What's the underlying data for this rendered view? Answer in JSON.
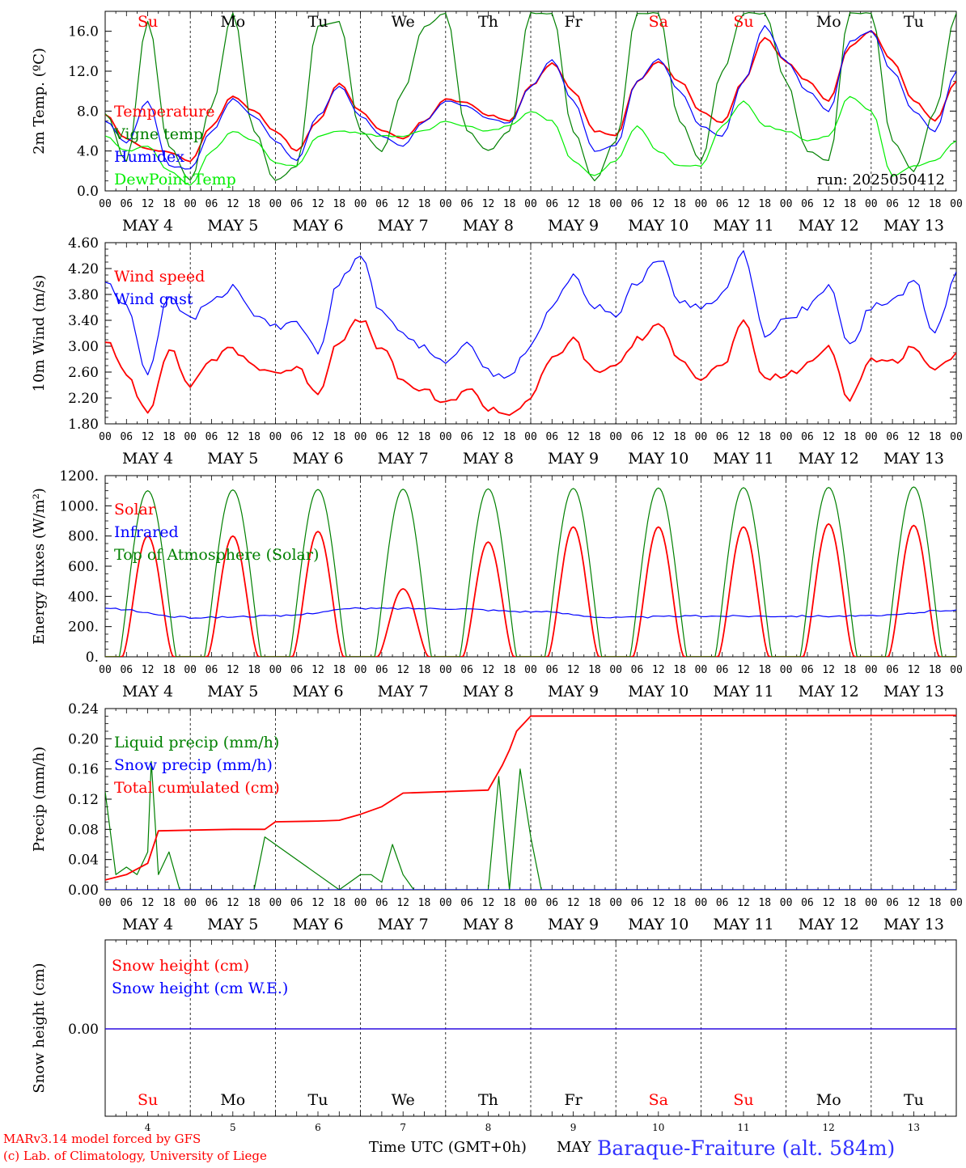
{
  "domain": "Chart",
  "days": [
    {
      "abbr": "Su",
      "color": "#ff0000"
    },
    {
      "abbr": "Mo",
      "color": "#000000"
    },
    {
      "abbr": "Tu",
      "color": "#000000"
    },
    {
      "abbr": "We",
      "color": "#000000"
    },
    {
      "abbr": "Th",
      "color": "#000000"
    },
    {
      "abbr": "Fr",
      "color": "#000000"
    },
    {
      "abbr": "Sa",
      "color": "#ff0000"
    },
    {
      "abbr": "Su",
      "color": "#ff0000"
    },
    {
      "abbr": "Mo",
      "color": "#000000"
    },
    {
      "abbr": "Tu",
      "color": "#000000"
    }
  ],
  "date_labels": [
    "MAY  4",
    "MAY  5",
    "MAY  6",
    "MAY  7",
    "MAY  8",
    "MAY  9",
    "MAY 10",
    "MAY 11",
    "MAY 12",
    "MAY 13"
  ],
  "hour_labels": [
    "00",
    "06",
    "12",
    "18"
  ],
  "bottom_day_numbers": [
    "4",
    "5",
    "6",
    "7",
    "8",
    "9",
    "10",
    "11",
    "12",
    "13"
  ],
  "footer": {
    "model": "MARv3.14 model forced by GFS",
    "credit": "(c) Lab. of Climatology, University of Liege",
    "axis_title": "Time UTC (GMT+0h)",
    "month": "MAY",
    "station": "Baraque-Fraiture (alt. 584m)"
  },
  "colors": {
    "red": "#ff0000",
    "blue": "#0000ff",
    "green": "#008000",
    "lightgreen": "#00ee00"
  },
  "chart_data": [
    {
      "id": "temp",
      "type": "line",
      "ylabel": "2m Temp. (ºC)",
      "ylim": [
        0,
        18
      ],
      "yticks": [
        0,
        4,
        8,
        12,
        16
      ],
      "ytick_labels": [
        "0.0",
        "4.0",
        "8.0",
        "12.0",
        "16.0"
      ],
      "annotation": "run: 2025050412",
      "x_unit": "hours since May 4 00 UTC",
      "series": [
        {
          "name": "Temperature",
          "color": "#ff0000",
          "x": [
            0,
            6,
            12,
            18,
            24,
            30,
            36,
            42,
            48,
            54,
            60,
            66,
            72,
            78,
            84,
            90,
            96,
            102,
            108,
            114,
            120,
            126,
            132,
            138,
            144,
            150,
            156,
            162,
            168,
            174,
            180,
            186,
            192,
            198,
            204,
            210,
            216,
            222,
            228,
            234,
            240
          ],
          "y": [
            7.6,
            5.2,
            4.2,
            3.9,
            3.0,
            6.5,
            9.5,
            8.0,
            6.0,
            4.0,
            7.0,
            10.8,
            8.0,
            6.0,
            5.2,
            7.0,
            9.2,
            8.8,
            7.6,
            7.0,
            10.5,
            12.8,
            10.0,
            6.0,
            5.5,
            11.0,
            13.0,
            11.0,
            8.0,
            6.8,
            11.0,
            15.4,
            13.0,
            11.0,
            9.0,
            14.5,
            16.0,
            13.0,
            9.0,
            7.0,
            11.0
          ]
        },
        {
          "name": "Vigne temp",
          "color": "#008000",
          "x": [
            0,
            6,
            12,
            18,
            24,
            30,
            36,
            42,
            48,
            54,
            60,
            66,
            72,
            78,
            84,
            90,
            96,
            102,
            108,
            114,
            120,
            126,
            132,
            138,
            144,
            150,
            156,
            162,
            168,
            174,
            180,
            186,
            192,
            198,
            204,
            210,
            216,
            222,
            228,
            234,
            240
          ],
          "y": [
            7.8,
            3.0,
            17.0,
            4.5,
            1.0,
            8.5,
            17.8,
            6.0,
            1.0,
            2.5,
            16.5,
            17.0,
            6.0,
            4.0,
            10.0,
            16.5,
            17.8,
            6.0,
            4.0,
            6.0,
            17.8,
            17.8,
            6.0,
            1.0,
            5.0,
            17.8,
            17.8,
            7.0,
            3.0,
            12.0,
            17.8,
            17.8,
            11.0,
            4.0,
            3.0,
            17.8,
            17.8,
            5.0,
            2.0,
            8.0,
            17.8
          ]
        },
        {
          "name": "Humidex",
          "color": "#0000ff",
          "x": [
            0,
            6,
            12,
            18,
            24,
            30,
            36,
            42,
            48,
            54,
            60,
            66,
            72,
            78,
            84,
            90,
            96,
            102,
            108,
            114,
            120,
            126,
            132,
            138,
            144,
            150,
            156,
            162,
            168,
            174,
            180,
            186,
            192,
            198,
            204,
            210,
            216,
            222,
            228,
            234,
            240
          ],
          "y": [
            7.0,
            4.8,
            9.0,
            2.5,
            2.2,
            6.0,
            9.2,
            7.5,
            5.0,
            3.0,
            7.5,
            10.5,
            7.5,
            5.5,
            4.5,
            7.0,
            9.0,
            8.5,
            7.2,
            6.8,
            10.5,
            13.2,
            9.0,
            4.0,
            4.5,
            11.0,
            13.2,
            10.0,
            6.5,
            5.5,
            11.0,
            16.5,
            13.0,
            10.0,
            8.0,
            15.0,
            16.0,
            12.0,
            8.0,
            6.0,
            12.0
          ]
        },
        {
          "name": "DewPoint Temp",
          "color": "#00ee00",
          "x": [
            0,
            6,
            12,
            18,
            24,
            30,
            36,
            42,
            48,
            54,
            60,
            66,
            72,
            78,
            84,
            90,
            96,
            102,
            108,
            114,
            120,
            126,
            132,
            138,
            144,
            150,
            156,
            162,
            168,
            174,
            180,
            186,
            192,
            198,
            204,
            210,
            216,
            222,
            228,
            234,
            240
          ],
          "y": [
            5.5,
            4.0,
            4.5,
            2.0,
            0.6,
            4.0,
            6.0,
            5.0,
            2.8,
            2.5,
            5.5,
            6.0,
            5.8,
            5.5,
            5.5,
            6.0,
            7.0,
            6.5,
            6.0,
            6.5,
            8.0,
            7.0,
            3.0,
            1.5,
            3.0,
            6.5,
            4.0,
            2.5,
            2.5,
            6.5,
            9.0,
            6.5,
            6.0,
            5.0,
            5.5,
            9.5,
            8.0,
            1.5,
            2.5,
            3.0,
            5.0
          ]
        }
      ]
    },
    {
      "id": "wind",
      "type": "line",
      "ylabel": "10m Wind (m/s)",
      "ylim": [
        1.8,
        4.6
      ],
      "yticks": [
        1.8,
        2.2,
        2.6,
        3.0,
        3.4,
        3.8,
        4.2,
        4.6
      ],
      "ytick_labels": [
        "1.80",
        "2.20",
        "2.60",
        "3.00",
        "3.40",
        "3.80",
        "4.20",
        "4.60"
      ],
      "x_unit": "hours since May 4 00 UTC",
      "series": [
        {
          "name": "Wind speed",
          "color": "#ff0000",
          "x": [
            0,
            6,
            12,
            18,
            24,
            30,
            36,
            42,
            48,
            54,
            60,
            66,
            72,
            78,
            84,
            90,
            96,
            102,
            108,
            114,
            120,
            126,
            132,
            138,
            144,
            150,
            156,
            162,
            168,
            174,
            180,
            186,
            192,
            198,
            204,
            210,
            216,
            222,
            228,
            234,
            240
          ],
          "y": [
            3.1,
            2.55,
            2.0,
            2.95,
            2.4,
            2.8,
            2.95,
            2.7,
            2.6,
            2.65,
            2.3,
            3.1,
            3.4,
            2.95,
            2.45,
            2.3,
            2.1,
            2.35,
            2.05,
            1.95,
            2.2,
            2.8,
            3.1,
            2.6,
            2.7,
            3.1,
            3.3,
            2.85,
            2.5,
            2.7,
            3.35,
            2.5,
            2.55,
            2.7,
            3.0,
            2.2,
            2.8,
            2.75,
            3.0,
            2.6,
            2.9
          ]
        },
        {
          "name": "Wind gust",
          "color": "#0000ff",
          "x": [
            0,
            6,
            12,
            18,
            24,
            30,
            36,
            42,
            48,
            54,
            60,
            66,
            72,
            78,
            84,
            90,
            96,
            102,
            108,
            114,
            120,
            126,
            132,
            138,
            144,
            150,
            156,
            162,
            168,
            174,
            180,
            186,
            192,
            198,
            204,
            210,
            216,
            222,
            228,
            234,
            240
          ],
          "y": [
            4.0,
            3.6,
            2.6,
            3.8,
            3.4,
            3.7,
            3.9,
            3.5,
            3.3,
            3.4,
            2.9,
            4.0,
            4.45,
            3.5,
            3.2,
            3.0,
            2.7,
            3.1,
            2.6,
            2.55,
            3.0,
            3.6,
            4.1,
            3.6,
            3.5,
            4.0,
            4.35,
            3.7,
            3.6,
            3.8,
            4.45,
            3.2,
            3.4,
            3.6,
            3.9,
            3.0,
            3.6,
            3.7,
            4.0,
            3.2,
            4.15
          ]
        }
      ]
    },
    {
      "id": "energy",
      "type": "line",
      "ylabel": "Energy fluxes (W/m²)",
      "ylim": [
        0,
        1200
      ],
      "yticks": [
        0,
        200,
        400,
        600,
        800,
        1000,
        1200
      ],
      "ytick_labels": [
        "0.",
        "200.",
        "400.",
        "600.",
        "800.",
        "1000.",
        "1200."
      ],
      "x_unit": "hours since May 4 00 UTC",
      "series": [
        {
          "name": "Solar",
          "color": "#ff0000",
          "daily_peak": [
            800,
            800,
            830,
            450,
            760,
            860,
            860,
            860,
            880,
            870
          ]
        },
        {
          "name": "Infrared",
          "color": "#0000ff",
          "x": [
            0,
            24,
            48,
            72,
            96,
            120,
            144,
            168,
            192,
            216,
            240
          ],
          "y": [
            320,
            260,
            270,
            320,
            320,
            300,
            260,
            270,
            270,
            270,
            310
          ]
        },
        {
          "name": "Top of Atmosphere (Solar)",
          "color": "#008000",
          "daily_peak": [
            1100,
            1105,
            1108,
            1110,
            1112,
            1115,
            1118,
            1120,
            1122,
            1125
          ]
        }
      ]
    },
    {
      "id": "precip",
      "type": "line",
      "ylabel": "Precip (mm/h)",
      "ylim": [
        0,
        0.24
      ],
      "yticks": [
        0,
        0.04,
        0.08,
        0.12,
        0.16,
        0.2,
        0.24
      ],
      "ytick_labels": [
        "0.00",
        "0.04",
        "0.08",
        "0.12",
        "0.16",
        "0.20",
        "0.24"
      ],
      "x_unit": "hours since May 4 00 UTC",
      "series": [
        {
          "name": "Liquid precip (mm/h)",
          "color": "#008000",
          "x": [
            0,
            3,
            6,
            9,
            12,
            13,
            15,
            18,
            21,
            42,
            45,
            66,
            72,
            75,
            78,
            81,
            84,
            87,
            90,
            96,
            102,
            108,
            111,
            114,
            117,
            120,
            123,
            126,
            240
          ],
          "y": [
            0.13,
            0.02,
            0.03,
            0.02,
            0.05,
            0.17,
            0.02,
            0.05,
            0.0,
            0.0,
            0.07,
            0.0,
            0.02,
            0.02,
            0.01,
            0.06,
            0.02,
            0.0,
            0.0,
            0.0,
            0.0,
            0.0,
            0.15,
            0.0,
            0.16,
            0.07,
            0.0,
            0.0,
            0.0
          ]
        },
        {
          "name": "Snow precip (mm/h)",
          "color": "#0000ff",
          "x": [
            0,
            240
          ],
          "y": [
            0.0,
            0.0
          ]
        },
        {
          "name": "Total cumulated (cm)",
          "color": "#ff0000",
          "x": [
            0,
            6,
            12,
            15,
            24,
            36,
            45,
            48,
            60,
            66,
            72,
            78,
            84,
            96,
            108,
            112,
            114,
            116,
            120,
            240
          ],
          "y": [
            0.013,
            0.02,
            0.035,
            0.078,
            0.079,
            0.08,
            0.08,
            0.09,
            0.091,
            0.092,
            0.1,
            0.11,
            0.128,
            0.13,
            0.132,
            0.165,
            0.185,
            0.21,
            0.23,
            0.231
          ]
        }
      ]
    },
    {
      "id": "snow",
      "type": "line",
      "ylabel": "Snow height (cm)",
      "yticks": [
        0
      ],
      "ytick_labels": [
        "0.00"
      ],
      "x_unit": "hours since May 4 00 UTC",
      "series": [
        {
          "name": "Snow height (cm)",
          "color": "#ff0000",
          "x": [
            0,
            240
          ],
          "y": [
            0,
            0
          ]
        },
        {
          "name": "Snow height (cm W.E.)",
          "color": "#0000ff",
          "x": [
            0,
            240
          ],
          "y": [
            0,
            0
          ]
        }
      ]
    }
  ]
}
